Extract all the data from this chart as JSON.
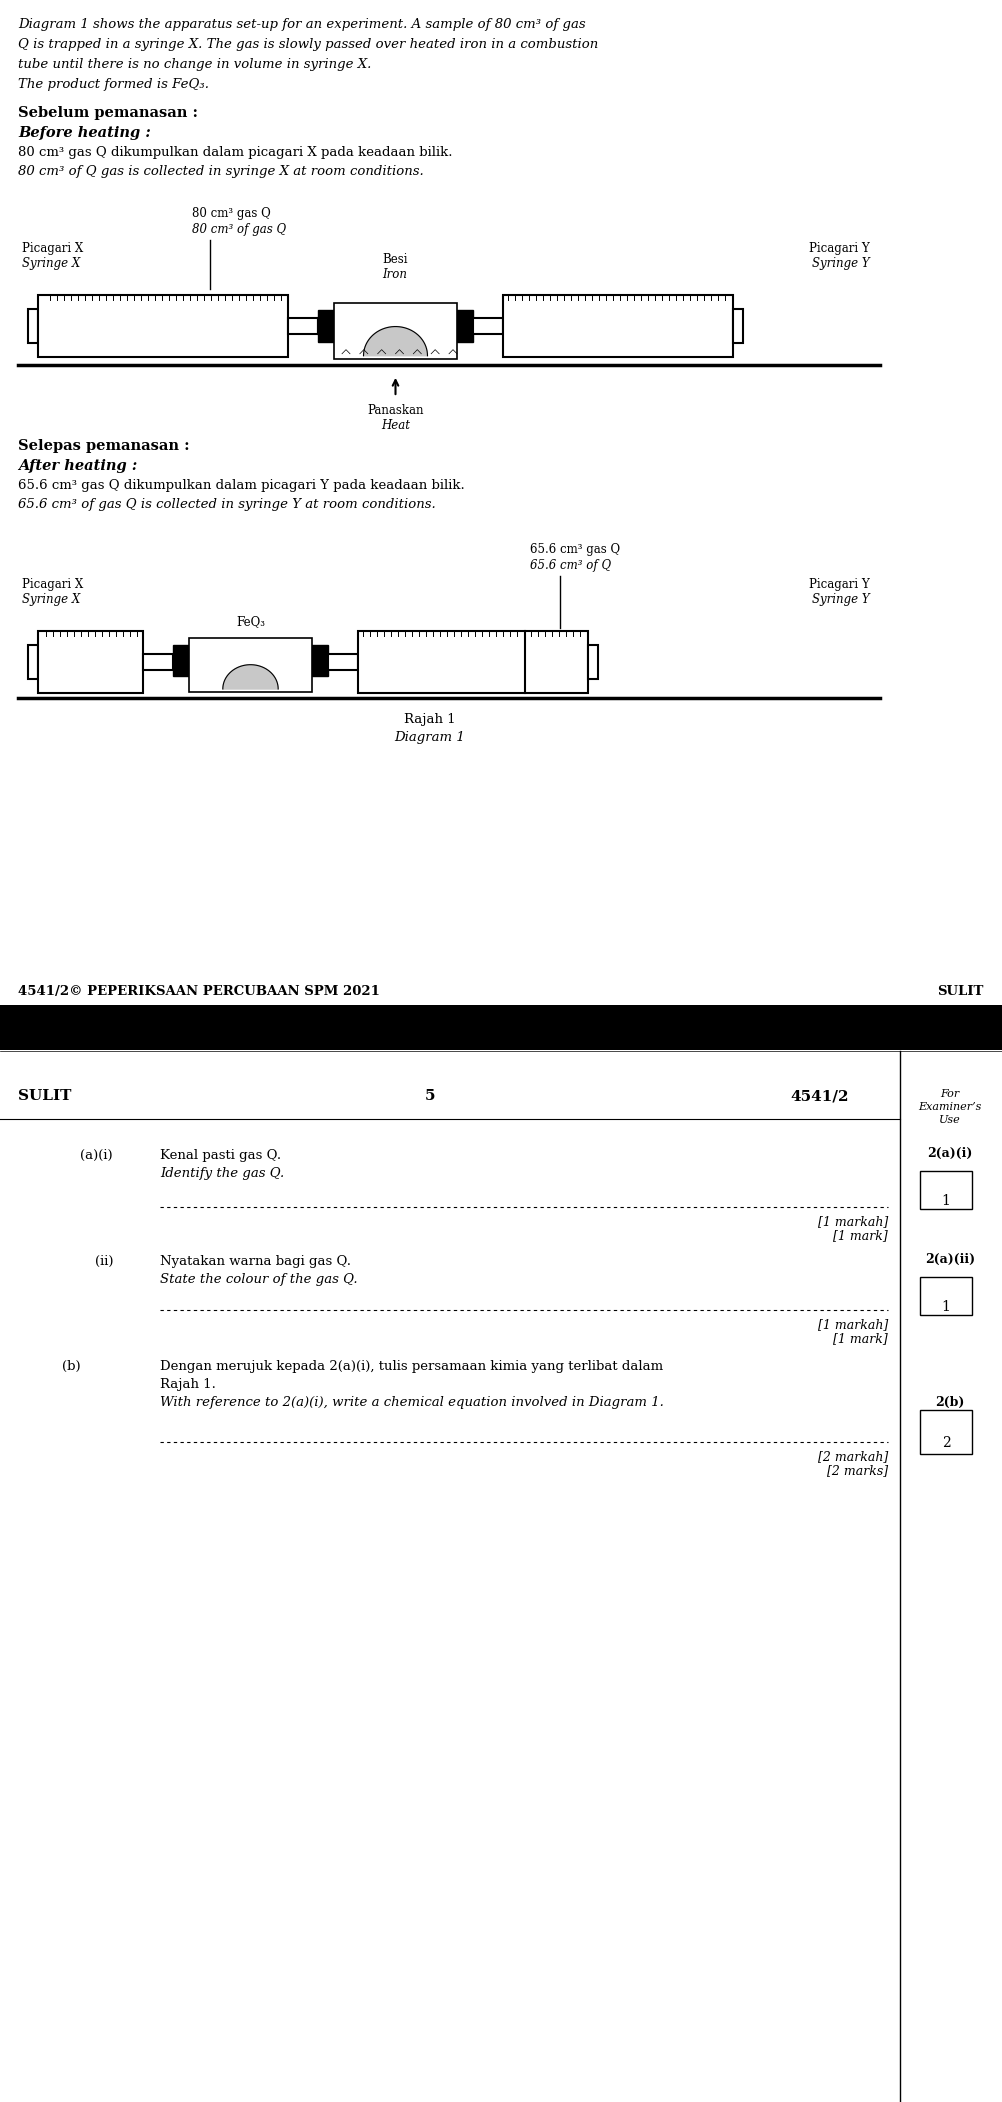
{
  "page_bg": "#ffffff",
  "intro_lines": [
    "Diagram 1 shows the apparatus set-up for an experiment. A sample of 80 cm³ of gas",
    "Q is trapped in a syringe X. The gas is slowly passed over heated iron in a combustion",
    "tube until there is no change in volume in syringe X.",
    "The product formed is FeQ₃."
  ],
  "before_bold": "Sebelum pemanasan :",
  "before_italic": "Before heating :",
  "before_malay": "80 cm³ gas Q dikumpulkan dalam picagari X pada keadaan bilik.",
  "before_english": "80 cm³ of Q gas is collected in syringe X at room conditions.",
  "after_bold": "Selepas pemanasan :",
  "after_italic": "After heating :",
  "after_malay": "65.6 cm³ gas Q dikumpulkan dalam picagari Y pada keadaan bilik.",
  "after_english": "65.6 cm³ of gas Q is collected in syringe Y at room conditions.",
  "diag1_vol_malay": "80 cm³ gas Q",
  "diag1_vol_eng": "80 cm³ of gas Q",
  "diag2_vol_malay": "65.6 cm³ gas Q",
  "diag2_vol_eng": "65.6 cm³ of Q",
  "besi": "Besi",
  "iron": "Iron",
  "feq3": "FeQ₃",
  "picagari_x_m": "Picagari X",
  "picagari_x_e": "Syringe X",
  "picagari_y_m": "Picagari Y",
  "picagari_y_e": "Syringe Y",
  "panaskan": "Panaskan",
  "heat": "Heat",
  "rajah": "Rajah 1",
  "diagram": "Diagram 1",
  "footer_left": "4541/2© PEPERIKSAAN PERCUBAAN SPM 2021",
  "footer_right": "SULIT",
  "p2_left": "SULIT",
  "p2_center": "5",
  "p2_right": "4541/2",
  "p2_corner": "For\nExaminer’s\nUse",
  "qa_label": "(a)(i)",
  "qa_q_m": "Kenal pasti gas Q.",
  "qa_q_e": "Identify the gas Q.",
  "qa_mark_m": "[1 markah]",
  "qa_mark_e": "[1 mark]",
  "qa_box_label": "2(a)(i)",
  "qa_box_num": "1",
  "qii_label": "(ii)",
  "qii_q_m": "Nyatakan warna bagi gas Q.",
  "qii_q_e": "State the colour of the gas Q.",
  "qii_mark_m": "[1 markah]",
  "qii_mark_e": "[1 mark]",
  "qii_box_label": "2(a)(ii)",
  "qii_box_num": "1",
  "qb_label": "(b)",
  "qb_q_m1": "Dengan merujuk kepada 2(a)(i), tulis persamaan kimia yang terlibat dalam",
  "qb_q_m2": "Rajah 1.",
  "qb_q_e": "With reference to 2(a)(i), write a chemical equation involved in Diagram 1.",
  "qb_mark_m": "[2 markah]",
  "qb_mark_e": "[2 marks]",
  "qb_box_label": "2(b)",
  "qb_box_num": "2"
}
